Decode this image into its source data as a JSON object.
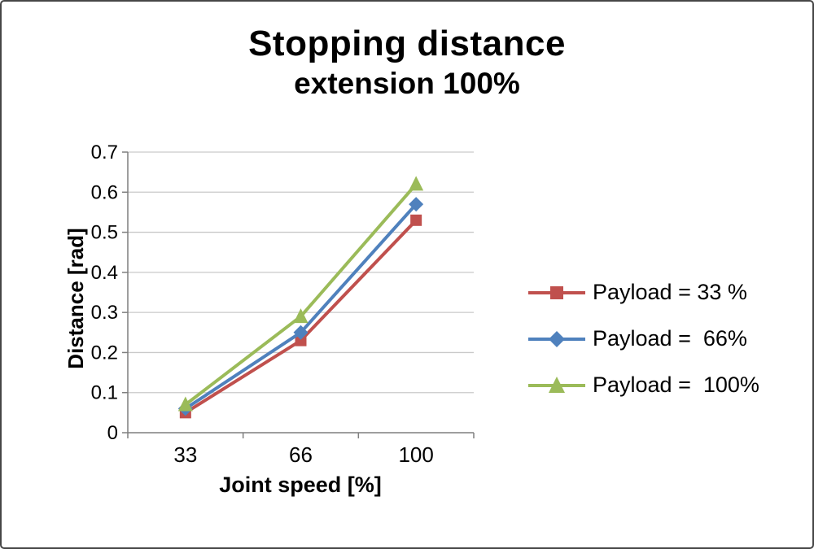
{
  "title": {
    "line1": "Stopping distance",
    "line2": "extension 100%"
  },
  "chart_data": {
    "type": "line",
    "categories": [
      "33",
      "66",
      "100"
    ],
    "series": [
      {
        "name": "Payload = 33 %",
        "marker": "square",
        "color": "#C0504D",
        "values": [
          0.05,
          0.23,
          0.53
        ]
      },
      {
        "name": "Payload =  66%",
        "marker": "diamond",
        "color": "#4F81BD",
        "values": [
          0.06,
          0.25,
          0.57
        ]
      },
      {
        "name": "Payload =  100%",
        "marker": "triangle",
        "color": "#9BBB59",
        "values": [
          0.07,
          0.29,
          0.62
        ]
      }
    ],
    "xlabel": "Joint speed [%]",
    "ylabel": "Distance [rad]",
    "ylim": [
      0,
      0.7
    ],
    "ytick_step": 0.1,
    "grid": true,
    "legend_position": "right"
  },
  "colors": {
    "grid": "#C9C9C9",
    "axis": "#7F7F7F",
    "text": "#000000"
  }
}
